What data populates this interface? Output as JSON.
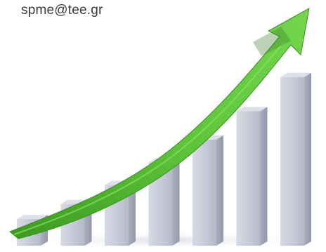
{
  "caption": {
    "text": "spme@tee.gr",
    "color": "#3a3a3a"
  },
  "illustration": {
    "subject": "growth-chart-with-arrow",
    "bar_count": 7,
    "bar_color": "#c9cdd9",
    "bar_side_color": "#a8adbc",
    "bar_top_color": "#dde0ea",
    "arrow_color": "#5cc03a",
    "arrow_dark_color": "#3f9a22",
    "bar_levels": [
      0.14,
      0.22,
      0.32,
      0.44,
      0.56,
      0.71,
      0.89
    ]
  }
}
